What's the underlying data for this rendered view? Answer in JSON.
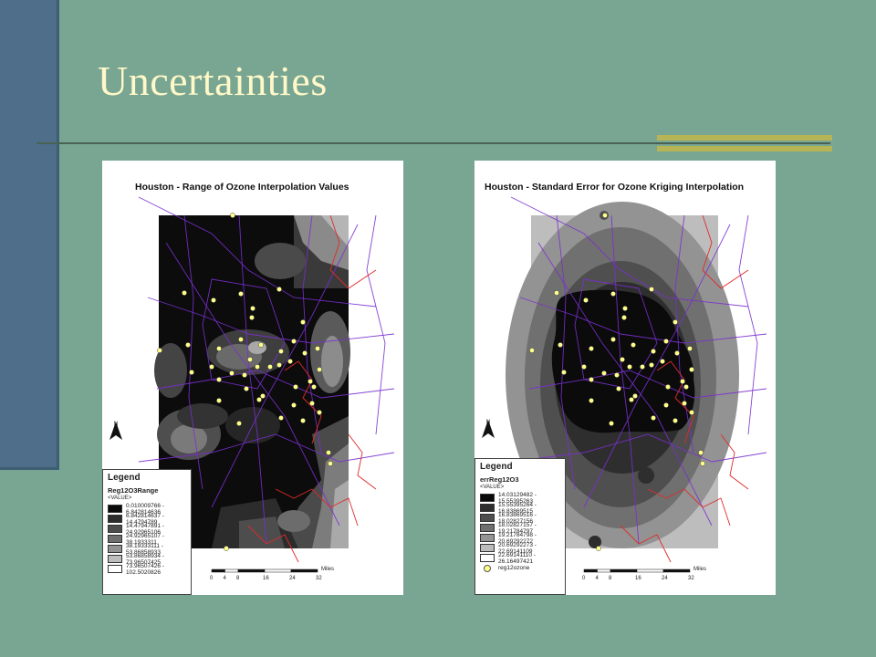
{
  "slide": {
    "title": "Uncertainties",
    "colors": {
      "background": "#78a692",
      "title": "#fff8c8",
      "side_bar": "#4e6e8a",
      "accent": "#b7b455"
    }
  },
  "left_map": {
    "title": "Houston - Range of Ozone Interpolation Values",
    "north_label": "N",
    "legend": {
      "heading": "Legend",
      "layer": "Reg12O3Range",
      "value_label": "<VALUE>",
      "classes": [
        {
          "label": "0.010009766 - 6.842814636",
          "color": "#0a0a0a"
        },
        {
          "label": "6.842814637 - 14.4794789",
          "color": "#2c2c2c"
        },
        {
          "label": "14.47947891 - 24.92965106",
          "color": "#4c4c4c"
        },
        {
          "label": "24.92965107 - 38.1933311",
          "color": "#6e6e6e"
        },
        {
          "label": "38.19333111 - 53.86858933",
          "color": "#929292"
        },
        {
          "label": "53.86858934 - 73.96507425",
          "color": "#bdbdbd"
        },
        {
          "label": "73.96507426 - 102.5020826",
          "color": "#ffffff"
        }
      ]
    },
    "scale": {
      "ticks": [
        "0",
        "4",
        "8",
        "16",
        "24",
        "32"
      ],
      "unit": "Miles"
    }
  },
  "right_map": {
    "title": "Houston - Standard Error for Ozone Kriging Interpolation",
    "north_label": "N",
    "legend": {
      "heading": "Legend",
      "layer": "errReg12O3",
      "value_label": "<VALUE>",
      "classes": [
        {
          "label": "14.03129482 - 15.55395263",
          "color": "#0a0a0a"
        },
        {
          "label": "15.55395264 - 16.83869515",
          "color": "#2e2e2e"
        },
        {
          "label": "16.83869516 - 18.02827156",
          "color": "#4e4e4e"
        },
        {
          "label": "18.02827157 - 19.21784797",
          "color": "#707070"
        },
        {
          "label": "19.21784798 - 20.69292272",
          "color": "#949494"
        },
        {
          "label": "20.69292273 - 22.69141109",
          "color": "#bcbcbc"
        },
        {
          "label": "22.69141110 - 26.16497421",
          "color": "#ffffff"
        }
      ],
      "point_layer": "reg12ozone"
    },
    "scale": {
      "ticks": [
        "0",
        "4",
        "8",
        "16",
        "24",
        "32"
      ],
      "unit": "Miles"
    }
  }
}
